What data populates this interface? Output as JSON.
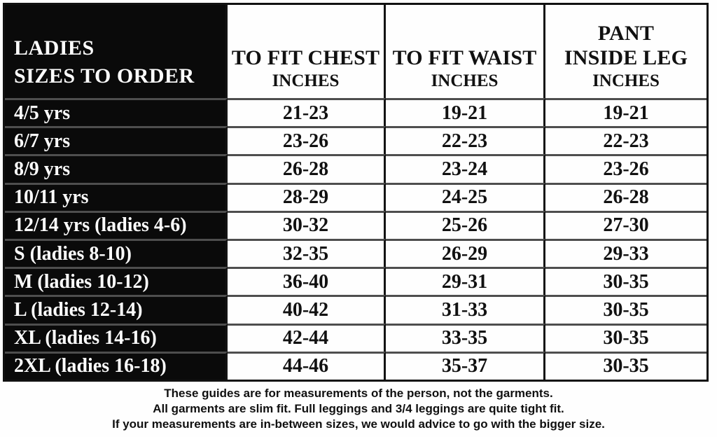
{
  "table": {
    "corner": {
      "line1": "LADIES",
      "line2": "SIZES TO ORDER"
    },
    "columns": [
      {
        "title_line1": "TO FIT CHEST",
        "unit": "INCHES"
      },
      {
        "title_line1": "TO FIT WAIST",
        "unit": "INCHES"
      },
      {
        "title_line1": "PANT",
        "title_line2": "INSIDE LEG",
        "unit": "INCHES"
      }
    ],
    "rows": [
      {
        "label": "4/5 yrs",
        "chest": "21-23",
        "waist": "19-21",
        "leg": "19-21"
      },
      {
        "label": "6/7 yrs",
        "chest": "23-26",
        "waist": "22-23",
        "leg": "22-23"
      },
      {
        "label": "8/9 yrs",
        "chest": "26-28",
        "waist": "23-24",
        "leg": "23-26"
      },
      {
        "label": "10/11 yrs",
        "chest": "28-29",
        "waist": "24-25",
        "leg": "26-28"
      },
      {
        "label": "12/14 yrs (ladies 4-6)",
        "chest": "30-32",
        "waist": "25-26",
        "leg": "27-30"
      },
      {
        "label": "S (ladies 8-10)",
        "chest": "32-35",
        "waist": "26-29",
        "leg": "29-33"
      },
      {
        "label": "M (ladies 10-12)",
        "chest": "36-40",
        "waist": "29-31",
        "leg": "30-35"
      },
      {
        "label": "L (ladies 12-14)",
        "chest": "40-42",
        "waist": "31-33",
        "leg": "30-35"
      },
      {
        "label": "XL (ladies 14-16)",
        "chest": "42-44",
        "waist": "33-35",
        "leg": "30-35"
      },
      {
        "label": "2XL (ladies 16-18)",
        "chest": "44-46",
        "waist": "35-37",
        "leg": "30-35"
      }
    ]
  },
  "footer": {
    "line1": "These guides are for measurements of the person, not the garments.",
    "line2": "All garments are slim fit. Full leggings and 3/4 leggings are quite tight fit.",
    "line3": "If your measurements are in-between sizes, we would advice to go with the bigger size."
  },
  "colors": {
    "cell_dark_background": "#0a0a0a",
    "cell_light_background": "#fefefe",
    "text_light": "#fdfdfd",
    "text_dark": "#111111",
    "vertical_border": "#131313",
    "horizontal_border": "#4e4e4e"
  },
  "chart_data": {
    "type": "table",
    "title": "LADIES SIZES TO ORDER",
    "columns": [
      "LADIES SIZES TO ORDER",
      "TO FIT CHEST INCHES",
      "TO FIT WAIST INCHES",
      "PANT INSIDE LEG INCHES"
    ],
    "rows": [
      [
        "4/5 yrs",
        "21-23",
        "19-21",
        "19-21"
      ],
      [
        "6/7 yrs",
        "23-26",
        "22-23",
        "22-23"
      ],
      [
        "8/9 yrs",
        "26-28",
        "23-24",
        "23-26"
      ],
      [
        "10/11 yrs",
        "28-29",
        "24-25",
        "26-28"
      ],
      [
        "12/14 yrs (ladies 4-6)",
        "30-32",
        "25-26",
        "27-30"
      ],
      [
        "S (ladies 8-10)",
        "32-35",
        "26-29",
        "29-33"
      ],
      [
        "M (ladies 10-12)",
        "36-40",
        "29-31",
        "30-35"
      ],
      [
        "L (ladies 12-14)",
        "40-42",
        "31-33",
        "30-35"
      ],
      [
        "XL (ladies 14-16)",
        "42-44",
        "33-35",
        "30-35"
      ],
      [
        "2XL (ladies 16-18)",
        "44-46",
        "35-37",
        "30-35"
      ]
    ],
    "notes": [
      "These guides are for measurements of the person, not the garments.",
      "All garments are slim fit. Full leggings and 3/4 leggings are quite tight fit.",
      "If your measurements are in-between sizes, we would advice to go with the bigger size."
    ]
  }
}
